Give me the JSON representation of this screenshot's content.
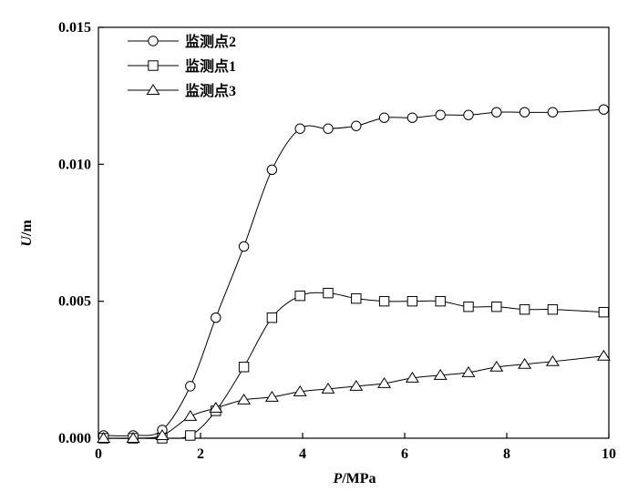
{
  "chart_data": {
    "type": "line",
    "xlabel_var": "P",
    "xlabel_unit": "/MPa",
    "ylabel_var": "U",
    "ylabel_unit": "/m",
    "xlim": [
      0,
      10
    ],
    "ylim": [
      0,
      0.015
    ],
    "x_ticks": [
      0,
      2,
      4,
      6,
      8,
      10
    ],
    "y_ticks": [
      0.0,
      0.005,
      0.01,
      0.015
    ],
    "y_tick_labels": [
      "0.000",
      "0.005",
      "0.010",
      "0.015"
    ],
    "grid": false,
    "legend_position": "top-left",
    "series": [
      {
        "name": "监测点2",
        "marker": "circle",
        "x": [
          0.1,
          0.68,
          1.25,
          1.8,
          2.3,
          2.85,
          3.4,
          3.95,
          4.5,
          5.05,
          5.6,
          6.15,
          6.7,
          7.25,
          7.8,
          8.35,
          8.9,
          9.9
        ],
        "y": [
          0.0001,
          0.0001,
          0.0003,
          0.0019,
          0.0044,
          0.007,
          0.0098,
          0.0113,
          0.0113,
          0.0114,
          0.0117,
          0.0117,
          0.0118,
          0.0118,
          0.0119,
          0.0119,
          0.0119,
          0.012
        ]
      },
      {
        "name": "监测点1",
        "marker": "square",
        "x": [
          0.1,
          0.68,
          1.25,
          1.8,
          2.3,
          2.85,
          3.4,
          3.95,
          4.5,
          5.05,
          5.6,
          6.15,
          6.7,
          7.25,
          7.8,
          8.35,
          8.9,
          9.9
        ],
        "y": [
          0.0,
          0.0,
          0.0,
          0.0001,
          0.001,
          0.0026,
          0.0044,
          0.0052,
          0.0053,
          0.0051,
          0.005,
          0.005,
          0.005,
          0.0048,
          0.0048,
          0.0047,
          0.0047,
          0.0046
        ]
      },
      {
        "name": "监测点3",
        "marker": "triangle",
        "x": [
          0.1,
          0.68,
          1.25,
          1.8,
          2.3,
          2.85,
          3.4,
          3.95,
          4.5,
          5.05,
          5.6,
          6.15,
          6.7,
          7.25,
          7.8,
          8.35,
          8.9,
          9.9
        ],
        "y": [
          0.0,
          0.0,
          0.0001,
          0.0008,
          0.0011,
          0.0014,
          0.0015,
          0.0017,
          0.0018,
          0.0019,
          0.002,
          0.0022,
          0.0023,
          0.0024,
          0.0026,
          0.0027,
          0.0028,
          0.003
        ]
      }
    ]
  }
}
